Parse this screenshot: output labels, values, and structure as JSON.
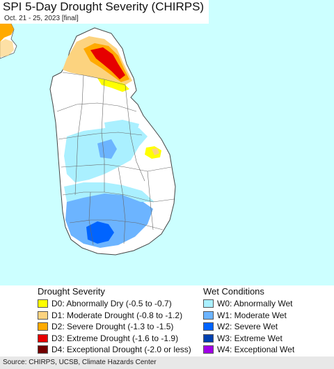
{
  "header": {
    "title": "SPI 5-Day Drought Severity (CHIRPS)",
    "subtitle": "Oct. 21 - 25, 2023 [final]"
  },
  "map": {
    "region": "Sri Lanka",
    "ocean_color": "#ccffff",
    "land_color": "#ffffff",
    "border_color": "#555555"
  },
  "legend": {
    "drought": {
      "heading": "Drought Severity",
      "items": [
        {
          "label": "D0: Abnormally Dry (-0.5 to -0.7)",
          "color": "#ffff00"
        },
        {
          "label": "D1: Moderate Drought (-0.8 to -1.2)",
          "color": "#fcd37f"
        },
        {
          "label": "D2: Severe Drought (-1.3 to -1.5)",
          "color": "#ffaa00"
        },
        {
          "label": "D3: Extreme Drought (-1.6 to -1.9)",
          "color": "#e60000"
        },
        {
          "label": "D4: Exceptional Drought (-2.0 or less)",
          "color": "#730000"
        }
      ]
    },
    "wet": {
      "heading": "Wet Conditions",
      "items": [
        {
          "label": "W0: Abnormally Wet",
          "color": "#aaf0ff"
        },
        {
          "label": "W1: Moderate Wet",
          "color": "#6cb4ff"
        },
        {
          "label": "W2: Severe Wet",
          "color": "#0064ff"
        },
        {
          "label": "W3: Extreme Wet",
          "color": "#0040b0"
        },
        {
          "label": "W4: Exceptional Wet",
          "color": "#a000e6"
        }
      ]
    }
  },
  "footer": {
    "source": "Source: CHIRPS, UCSB, Climate Hazards Center"
  }
}
